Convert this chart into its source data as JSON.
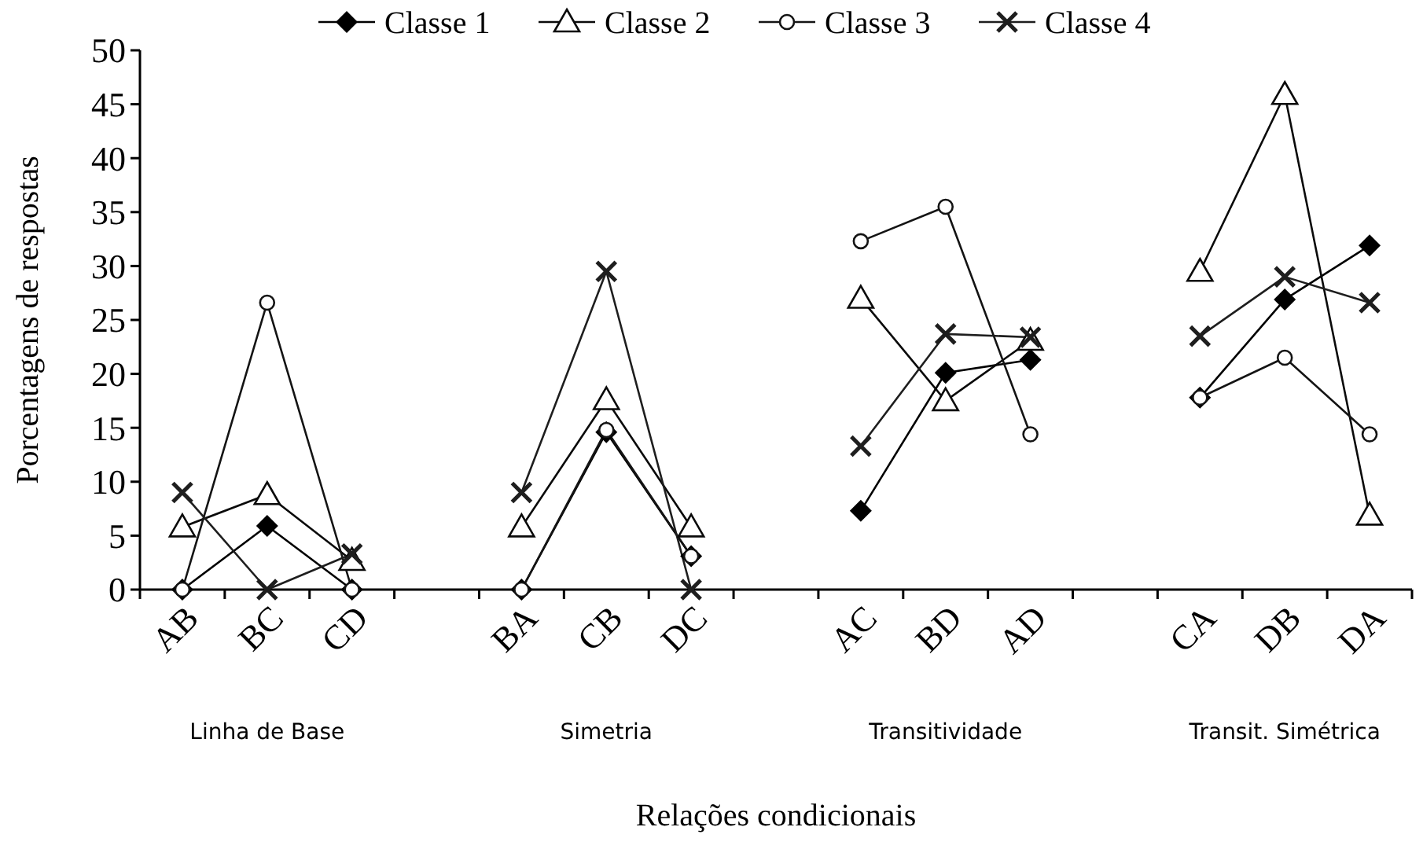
{
  "chart_data": {
    "type": "line",
    "xlabel": "Relações condicionais",
    "ylabel": "Porcentagens de respostas",
    "categories": [
      "AB",
      "BC",
      "CD",
      null,
      "BA",
      "CB",
      "DC",
      null,
      "AC",
      "BD",
      "AD",
      null,
      "CA",
      "DB",
      "DA"
    ],
    "series": [
      {
        "name": "Classe 1",
        "color": "#000000",
        "marker": "diamond",
        "values": [
          0,
          5.9,
          0,
          null,
          0,
          14.6,
          3.1,
          null,
          7.3,
          20.1,
          21.3,
          null,
          17.8,
          26.9,
          31.9
        ]
      },
      {
        "name": "Classe 2",
        "color": "#0a0a0a",
        "marker": "triangle",
        "values": [
          5.8,
          8.8,
          2.7,
          null,
          5.8,
          17.6,
          5.8,
          null,
          27.0,
          17.5,
          23.1,
          null,
          29.5,
          45.9,
          6.9
        ]
      },
      {
        "name": "Classe 3",
        "color": "#141414",
        "marker": "circle",
        "values": [
          0,
          26.6,
          0,
          null,
          0,
          14.8,
          3.1,
          null,
          32.3,
          35.5,
          14.4,
          null,
          17.8,
          21.5,
          14.4
        ]
      },
      {
        "name": "Classe 4",
        "color": "#1e1e1e",
        "marker": "cross",
        "values": [
          9.0,
          0,
          3.3,
          null,
          9.0,
          29.5,
          0,
          null,
          13.3,
          23.7,
          23.4,
          null,
          23.5,
          29.0,
          26.6
        ]
      }
    ],
    "ylim": [
      0,
      50
    ],
    "yticks": [
      0,
      5,
      10,
      15,
      20,
      25,
      30,
      35,
      40,
      45,
      50
    ],
    "annotations": [
      "Linha de Base",
      "Simetria",
      "Transitividade",
      "Transit. Simétrica"
    ],
    "grid": false,
    "legend": "top",
    "line_style": "solid"
  }
}
